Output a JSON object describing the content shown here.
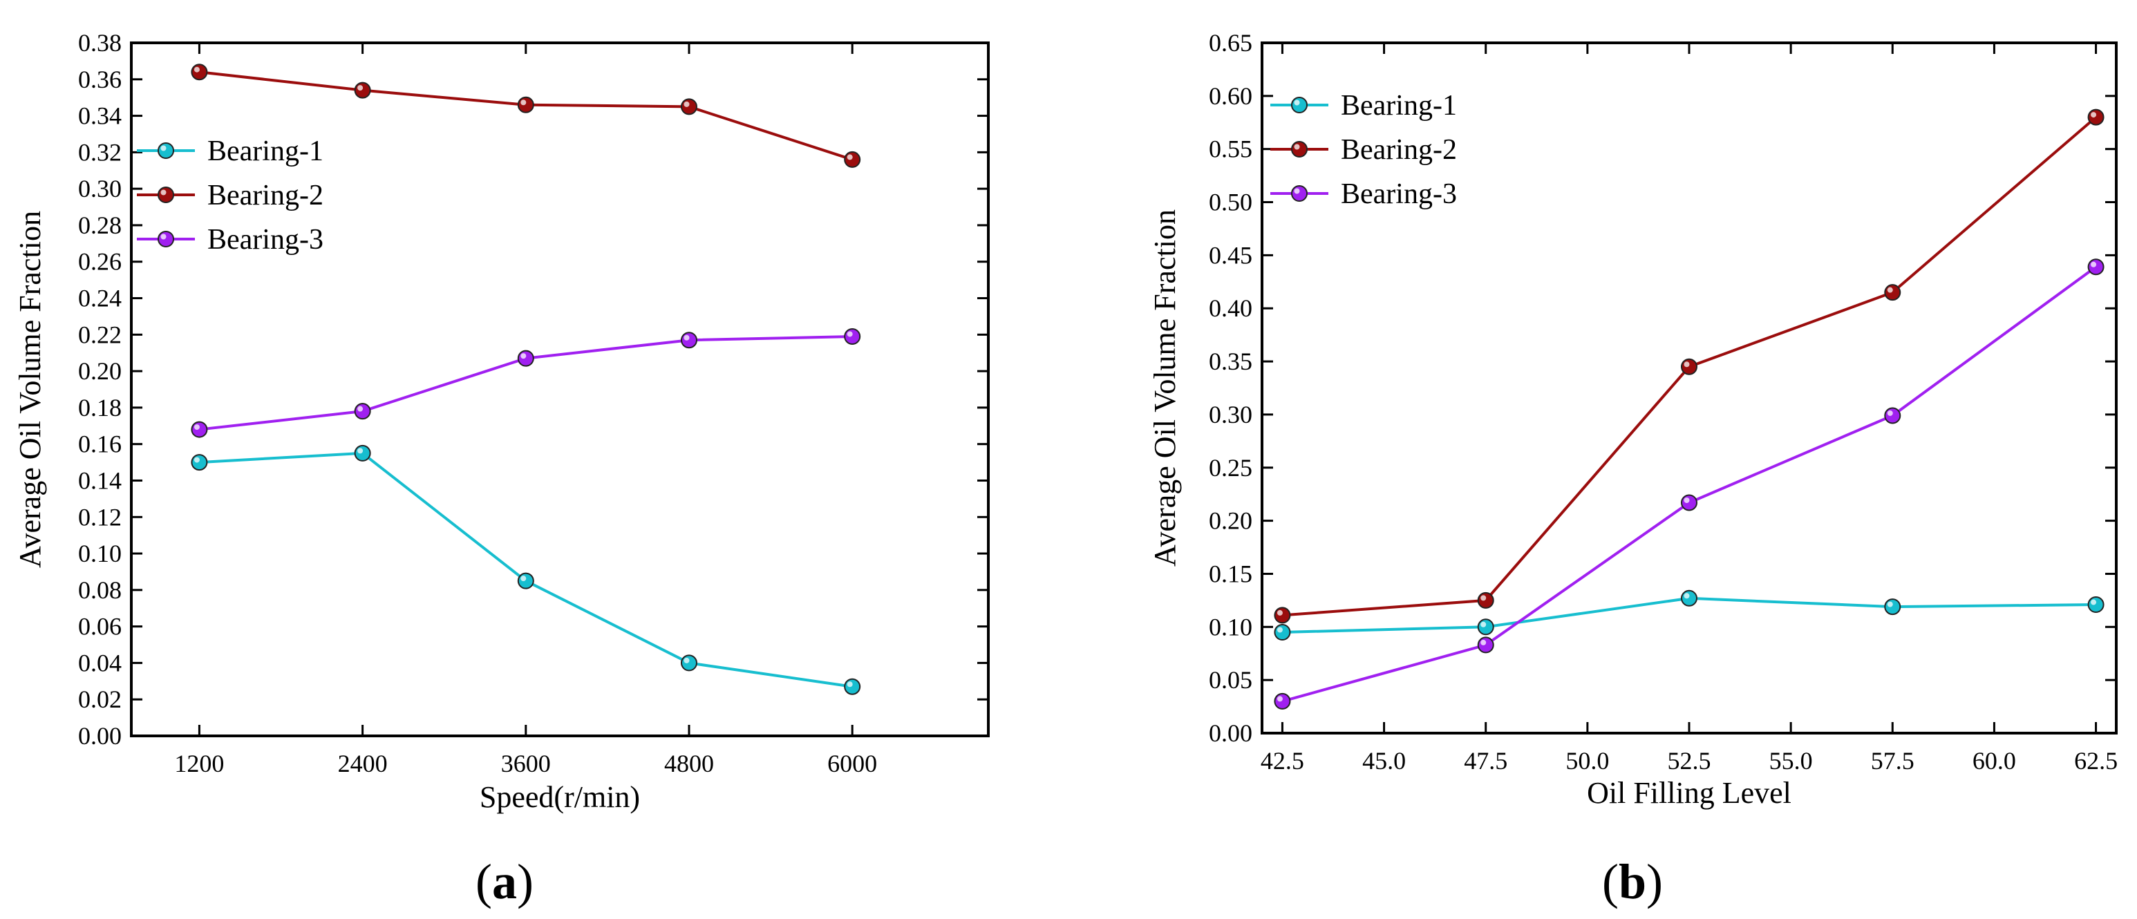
{
  "panels": [
    {
      "label_open": "(",
      "label_letter": "a",
      "label_close": ")",
      "chart_data": {
        "type": "line",
        "title": "",
        "xlabel": "Speed(r/min)",
        "ylabel": "Average Oil Volume Fraction",
        "xlim": [
          700,
          7000
        ],
        "ylim": [
          0,
          0.38
        ],
        "xticks": [
          1200,
          2400,
          3600,
          4800,
          6000
        ],
        "xtick_labels": [
          "1200",
          "2400",
          "3600",
          "4800",
          "6000"
        ],
        "yticks": [
          0,
          0.02,
          0.04,
          0.06,
          0.08,
          0.1,
          0.12,
          0.14,
          0.16,
          0.18,
          0.2,
          0.22,
          0.24,
          0.26,
          0.28,
          0.3,
          0.32,
          0.34,
          0.36,
          0.38
        ],
        "ytick_labels": [
          "0.00",
          "0.02",
          "0.04",
          "0.06",
          "0.08",
          "0.10",
          "0.12",
          "0.14",
          "0.16",
          "0.18",
          "0.20",
          "0.22",
          "0.24",
          "0.26",
          "0.28",
          "0.30",
          "0.32",
          "0.34",
          "0.36",
          "0.38"
        ],
        "grid": false,
        "legend_position": "upper-left",
        "x": [
          1200,
          2400,
          3600,
          4800,
          6000
        ],
        "series": [
          {
            "name": "Bearing-1",
            "color": "#17BECF",
            "values": [
              0.15,
              0.155,
              0.085,
              0.04,
              0.027
            ]
          },
          {
            "name": "Bearing-2",
            "color": "#9B0D0D",
            "values": [
              0.364,
              0.354,
              0.346,
              0.345,
              0.316
            ]
          },
          {
            "name": "Bearing-3",
            "color": "#A020F0",
            "values": [
              0.168,
              0.178,
              0.207,
              0.217,
              0.219
            ]
          }
        ]
      }
    },
    {
      "label_open": "(",
      "label_letter": "b",
      "label_close": ")",
      "chart_data": {
        "type": "line",
        "title": "",
        "xlabel": "Oil Filling Level",
        "ylabel": "Average Oil Volume Fraction",
        "xlim": [
          42,
          63
        ],
        "ylim": [
          0,
          0.65
        ],
        "xticks": [
          42.5,
          45.0,
          47.5,
          50.0,
          52.5,
          55.0,
          57.5,
          60.0,
          62.5
        ],
        "xtick_labels": [
          "42.5",
          "45.0",
          "47.5",
          "50.0",
          "52.5",
          "55.0",
          "57.5",
          "60.0",
          "62.5"
        ],
        "yticks": [
          0,
          0.05,
          0.1,
          0.15,
          0.2,
          0.25,
          0.3,
          0.35,
          0.4,
          0.45,
          0.5,
          0.55,
          0.6,
          0.65
        ],
        "ytick_labels": [
          "0.00",
          "0.05",
          "0.10",
          "0.15",
          "0.20",
          "0.25",
          "0.30",
          "0.35",
          "0.40",
          "0.45",
          "0.50",
          "0.55",
          "0.60",
          "0.65"
        ],
        "grid": false,
        "legend_position": "upper-left",
        "x": [
          42.5,
          47.5,
          52.5,
          57.5,
          62.5
        ],
        "series": [
          {
            "name": "Bearing-1",
            "color": "#17BECF",
            "values": [
              0.095,
              0.1,
              0.127,
              0.119,
              0.121
            ]
          },
          {
            "name": "Bearing-2",
            "color": "#9B0D0D",
            "values": [
              0.111,
              0.125,
              0.345,
              0.415,
              0.58
            ]
          },
          {
            "name": "Bearing-3",
            "color": "#A020F0",
            "values": [
              0.03,
              0.083,
              0.217,
              0.299,
              0.439
            ]
          }
        ]
      }
    }
  ]
}
